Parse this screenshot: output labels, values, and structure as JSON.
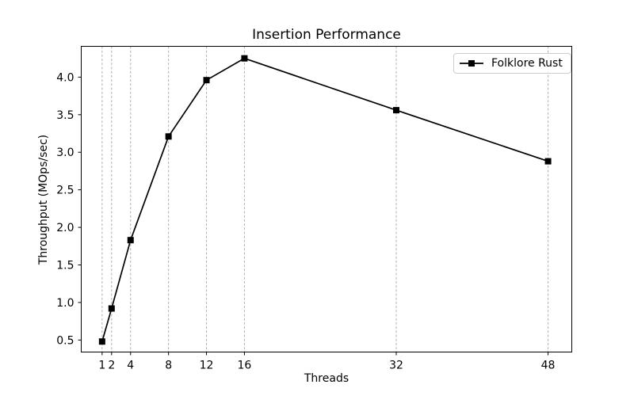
{
  "chart_data": {
    "type": "line",
    "title": "Insertion Performance",
    "xlabel": "Threads",
    "ylabel": "Throughput (MOps/sec)",
    "x": [
      1,
      2,
      4,
      8,
      12,
      16,
      32,
      48
    ],
    "series": [
      {
        "name": "Folklore Rust",
        "values": [
          0.48,
          0.92,
          1.83,
          3.21,
          3.96,
          4.25,
          3.56,
          2.88
        ],
        "color": "#000000",
        "marker": "square",
        "linestyle": "solid"
      }
    ],
    "xticks": [
      1,
      2,
      4,
      8,
      12,
      16,
      32,
      48
    ],
    "yticks": [
      0.5,
      1.0,
      1.5,
      2.0,
      2.5,
      3.0,
      3.5,
      4.0
    ],
    "xlim": [
      -1.2,
      50.5
    ],
    "ylim": [
      0.34,
      4.41
    ],
    "x_scale": "linear",
    "grid": {
      "axis": "x",
      "linestyle": "dashed",
      "color": "#b0b0b0",
      "on": true
    },
    "legend_position": "upper right",
    "axes_color": "#000000",
    "background": "#ffffff"
  }
}
